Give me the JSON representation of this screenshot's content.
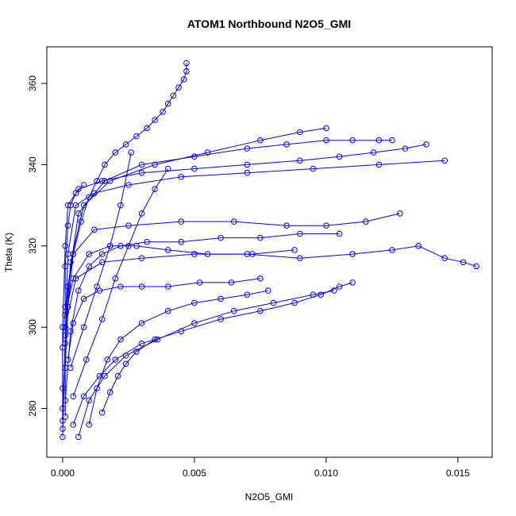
{
  "chart_data": {
    "type": "scatter",
    "title": "ATOM1 Northbound N2O5_GMI",
    "xlabel": "N2O5_GMI",
    "ylabel": "Theta (K)",
    "xlim": [
      -0.0006,
      0.0163
    ],
    "ylim": [
      268,
      369
    ],
    "x_ticks": [
      0.0,
      0.005,
      0.01,
      0.015
    ],
    "x_tick_labels": [
      "0.000",
      "0.005",
      "0.010",
      "0.015"
    ],
    "y_ticks": [
      280,
      300,
      320,
      340,
      360
    ],
    "y_tick_labels": [
      "280",
      "300",
      "320",
      "340",
      "360"
    ],
    "grid": false,
    "marker": "open-circle",
    "connected": true,
    "color": "#0000ff",
    "series": [
      {
        "x": [
          0.0001,
          0.0001,
          0.0002,
          0.0004,
          0.0007,
          0.001,
          0.0013,
          0.0016,
          0.002,
          0.0024,
          0.0028,
          0.0032,
          0.0035,
          0.0038,
          0.004,
          0.0042,
          0.0044,
          0.0046,
          0.0047,
          0.0047
        ],
        "y": [
          278,
          290,
          305,
          318,
          326,
          332,
          336,
          340,
          343,
          345,
          347,
          349,
          351,
          353,
          355,
          357,
          359,
          361,
          363,
          365
        ]
      },
      {
        "x": [
          0.0,
          0.0,
          0.0001,
          0.0002,
          0.0006,
          0.0015,
          0.003,
          0.005,
          0.007,
          0.009,
          0.0105,
          0.0118,
          0.013,
          0.0138
        ],
        "y": [
          277,
          300,
          320,
          330,
          334,
          336,
          338,
          339,
          340,
          341,
          342,
          343,
          344,
          345
        ]
      },
      {
        "x": [
          0.0,
          0.0001,
          0.0002,
          0.0005,
          0.0012,
          0.0025,
          0.0045,
          0.007,
          0.0095,
          0.012,
          0.0145
        ],
        "y": [
          273,
          298,
          318,
          330,
          333,
          335,
          337,
          338,
          339,
          340,
          341
        ]
      },
      {
        "x": [
          0.0,
          0.0001,
          0.0003,
          0.0008,
          0.0018,
          0.0035,
          0.0055,
          0.0075,
          0.009,
          0.01
        ],
        "y": [
          275,
          296,
          316,
          330,
          336,
          340,
          343,
          346,
          348,
          349
        ]
      },
      {
        "x": [
          0.0,
          0.0002,
          0.0006,
          0.0016,
          0.003,
          0.005,
          0.007,
          0.0085,
          0.01,
          0.011,
          0.012,
          0.0125
        ],
        "y": [
          280,
          310,
          328,
          336,
          340,
          342,
          344,
          345,
          346,
          346,
          346,
          346
        ]
      },
      {
        "x": [
          0.0001,
          0.0005,
          0.0015,
          0.003,
          0.005,
          0.007,
          0.009,
          0.011,
          0.0125,
          0.0135,
          0.0145,
          0.0152,
          0.0157
        ],
        "y": [
          300,
          312,
          316,
          317,
          318,
          318,
          317,
          318,
          319,
          320,
          317,
          316,
          315
        ]
      },
      {
        "x": [
          0.0001,
          0.0004,
          0.0012,
          0.0025,
          0.0045,
          0.0065,
          0.0085,
          0.01,
          0.0115,
          0.0128
        ],
        "y": [
          305,
          318,
          324,
          325,
          326,
          326,
          325,
          325,
          326,
          328
        ]
      },
      {
        "x": [
          0.0004,
          0.0008,
          0.0014,
          0.002,
          0.003,
          0.0045,
          0.006,
          0.0075,
          0.0088,
          0.0098,
          0.0105,
          0.011
        ],
        "y": [
          276,
          283,
          288,
          292,
          296,
          299,
          302,
          304,
          306,
          308,
          310,
          311
        ]
      },
      {
        "x": [
          0.0006,
          0.001,
          0.0016,
          0.0024,
          0.0036,
          0.005,
          0.0065,
          0.008,
          0.0095,
          0.0103
        ],
        "y": [
          273,
          282,
          288,
          293,
          297,
          301,
          304,
          306,
          308,
          309
        ]
      },
      {
        "x": [
          0.001,
          0.0013,
          0.0017,
          0.0022,
          0.003,
          0.004,
          0.005,
          0.006,
          0.007,
          0.0078
        ],
        "y": [
          276,
          285,
          292,
          297,
          301,
          304,
          306,
          307,
          308,
          309
        ]
      },
      {
        "x": [
          0.0002,
          0.0004,
          0.0008,
          0.0014,
          0.0022,
          0.003,
          0.004,
          0.0052,
          0.0064,
          0.0075
        ],
        "y": [
          292,
          301,
          307,
          309,
          310,
          310,
          310,
          311,
          311,
          312
        ]
      },
      {
        "x": [
          0.0015,
          0.0018,
          0.0021,
          0.0024,
          0.0028,
          0.0035
        ],
        "y": [
          279,
          284,
          288,
          291,
          294,
          297
        ]
      },
      {
        "x": [
          0.0,
          0.0,
          0.0001,
          0.0001,
          0.0002,
          0.0003,
          0.0005,
          0.0008
        ],
        "y": [
          285,
          295,
          305,
          315,
          325,
          330,
          333,
          335
        ]
      },
      {
        "x": [
          0.0001,
          0.0003,
          0.0006,
          0.001,
          0.0015,
          0.0022,
          0.0032,
          0.0045,
          0.006,
          0.0075,
          0.009,
          0.0105
        ],
        "y": [
          282,
          299,
          309,
          315,
          318,
          320,
          321,
          321,
          322,
          322,
          323,
          323
        ]
      },
      {
        "x": [
          0.0003,
          0.0008,
          0.0013,
          0.0018,
          0.0022,
          0.0026
        ],
        "y": [
          290,
          300,
          310,
          320,
          330,
          343
        ]
      },
      {
        "x": [
          0.0004,
          0.0009,
          0.0015,
          0.002,
          0.0025,
          0.003,
          0.0035,
          0.004
        ],
        "y": [
          283,
          292,
          302,
          312,
          320,
          328,
          334,
          339
        ]
      },
      {
        "x": [
          0.0001,
          0.0004,
          0.001,
          0.0018,
          0.0028,
          0.004,
          0.0055,
          0.0072,
          0.0088
        ],
        "y": [
          303,
          312,
          318,
          320,
          320,
          319,
          318,
          318,
          319
        ]
      }
    ]
  }
}
